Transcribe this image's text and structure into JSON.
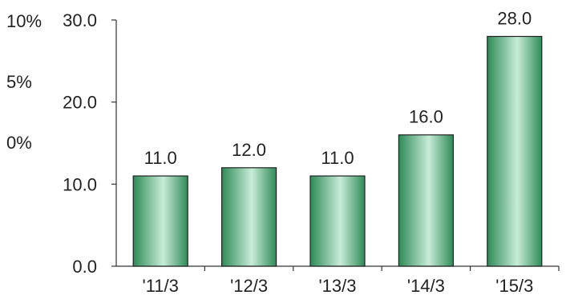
{
  "chart_data": {
    "type": "bar",
    "title": "",
    "xlabel": "",
    "ylabel": "",
    "categories": [
      "'11/3",
      "'12/3",
      "'13/3",
      "'14/3",
      "'15/3"
    ],
    "values": [
      11.0,
      12.0,
      11.0,
      16.0,
      28.0
    ],
    "data_labels": [
      "11.0",
      "12.0",
      "11.0",
      "16.0",
      "28.0"
    ],
    "ylim": [
      0,
      30
    ],
    "yticks": [
      "0.0",
      "10.0",
      "20.0",
      "30.0"
    ],
    "secondary_axis_labels": [
      "10%",
      "5%",
      "0%"
    ],
    "grid": false,
    "legend": "none",
    "colors": {
      "bar_dark": "#2e8b57",
      "bar_light": "#c8ecd8",
      "bar_outline": "#222222",
      "axis": "#333333"
    }
  }
}
